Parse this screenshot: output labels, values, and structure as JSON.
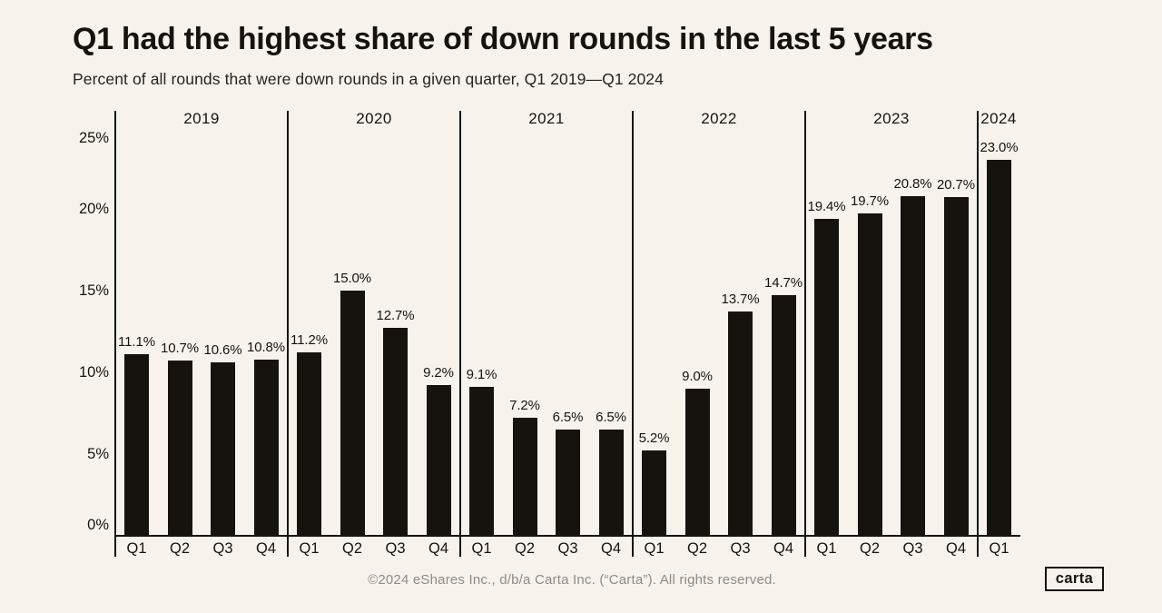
{
  "page": {
    "background_color": "#f7f3ec",
    "ink_color": "#16130f",
    "muted_color": "#8f8b85"
  },
  "header": {
    "title": "Q1 had the highest share of down rounds in the last 5 years",
    "subtitle": "Percent of all rounds that were down rounds in a given quarter, Q1 2019—Q1 2024"
  },
  "chart_data": {
    "type": "bar",
    "title": "Q1 had the highest share of down rounds in the last 5 years",
    "subtitle": "Percent of all rounds that were down rounds in a given quarter, Q1 2019—Q1 2024",
    "xlabel": "",
    "ylabel": "",
    "ylim": [
      0,
      26
    ],
    "grid": false,
    "legend": "none",
    "bar_color": "#16130f",
    "y_axis": {
      "ticks": [
        {
          "value": 0,
          "label": "0%"
        },
        {
          "value": 5,
          "label": "5%"
        },
        {
          "value": 10,
          "label": "10%"
        },
        {
          "value": 15,
          "label": "15%"
        },
        {
          "value": 20,
          "label": "20%"
        },
        {
          "value": 25,
          "label": "25%"
        }
      ]
    },
    "groups": [
      {
        "year": "2019",
        "bars": [
          {
            "quarter": "Q1",
            "value": 11.1,
            "label": "11.1%"
          },
          {
            "quarter": "Q2",
            "value": 10.7,
            "label": "10.7%"
          },
          {
            "quarter": "Q3",
            "value": 10.6,
            "label": "10.6%"
          },
          {
            "quarter": "Q4",
            "value": 10.8,
            "label": "10.8%"
          }
        ]
      },
      {
        "year": "2020",
        "bars": [
          {
            "quarter": "Q1",
            "value": 11.2,
            "label": "11.2%"
          },
          {
            "quarter": "Q2",
            "value": 15.0,
            "label": "15.0%"
          },
          {
            "quarter": "Q3",
            "value": 12.7,
            "label": "12.7%"
          },
          {
            "quarter": "Q4",
            "value": 9.2,
            "label": "9.2%"
          }
        ]
      },
      {
        "year": "2021",
        "bars": [
          {
            "quarter": "Q1",
            "value": 9.1,
            "label": "9.1%"
          },
          {
            "quarter": "Q2",
            "value": 7.2,
            "label": "7.2%"
          },
          {
            "quarter": "Q3",
            "value": 6.5,
            "label": "6.5%"
          },
          {
            "quarter": "Q4",
            "value": 6.5,
            "label": "6.5%"
          }
        ]
      },
      {
        "year": "2022",
        "bars": [
          {
            "quarter": "Q1",
            "value": 5.2,
            "label": "5.2%"
          },
          {
            "quarter": "Q2",
            "value": 9.0,
            "label": "9.0%"
          },
          {
            "quarter": "Q3",
            "value": 13.7,
            "label": "13.7%"
          },
          {
            "quarter": "Q4",
            "value": 14.7,
            "label": "14.7%"
          }
        ]
      },
      {
        "year": "2023",
        "bars": [
          {
            "quarter": "Q1",
            "value": 19.4,
            "label": "19.4%"
          },
          {
            "quarter": "Q2",
            "value": 19.7,
            "label": "19.7%"
          },
          {
            "quarter": "Q3",
            "value": 20.8,
            "label": "20.8%"
          },
          {
            "quarter": "Q4",
            "value": 20.7,
            "label": "20.7%"
          }
        ]
      },
      {
        "year": "2024",
        "bars": [
          {
            "quarter": "Q1",
            "value": 23.0,
            "label": "23.0%"
          }
        ]
      }
    ]
  },
  "footer": {
    "copyright": "©2024 eShares Inc., d/b/a Carta Inc. (“Carta”). All rights reserved.",
    "logo_text": "carta"
  }
}
